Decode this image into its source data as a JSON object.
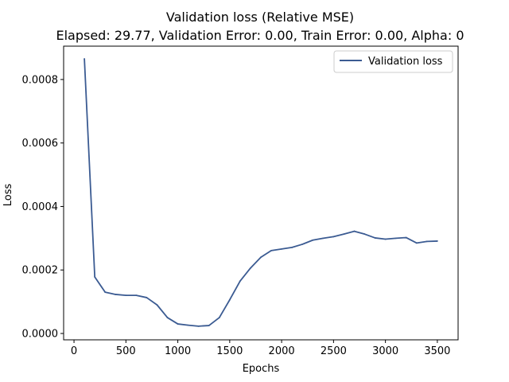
{
  "chart_data": {
    "type": "line",
    "title": "Validation loss (Relative MSE)",
    "subtitle": "Elapsed: 29.77, Validation Error: 0.00, Train Error: 0.00, Alpha: 0",
    "xlabel": "Epochs",
    "ylabel": "Loss",
    "xlim": [
      -100,
      3700
    ],
    "ylim": [
      -2e-05,
      0.000905
    ],
    "xticks": [
      0,
      500,
      1000,
      1500,
      2000,
      2500,
      3000,
      3500
    ],
    "xtick_labels": [
      "0",
      "500",
      "1000",
      "1500",
      "2000",
      "2500",
      "3000",
      "3500"
    ],
    "yticks": [
      0.0,
      0.0002,
      0.0004,
      0.0006,
      0.0008
    ],
    "ytick_labels": [
      "0.0000",
      "0.0002",
      "0.0004",
      "0.0006",
      "0.0008"
    ],
    "grid": false,
    "legend_placement": "top-right",
    "series": [
      {
        "name": "Validation loss",
        "color": "#3b5b92",
        "x": [
          100,
          200,
          300,
          400,
          500,
          600,
          700,
          800,
          900,
          1000,
          1100,
          1200,
          1300,
          1400,
          1500,
          1600,
          1700,
          1800,
          1900,
          2000,
          2100,
          2200,
          2300,
          2400,
          2500,
          2600,
          2700,
          2800,
          2900,
          3000,
          3100,
          3200,
          3300,
          3400,
          3500
        ],
        "y": [
          0.000865,
          0.000178,
          0.00013,
          0.000123,
          0.00012,
          0.00012,
          0.000113,
          9e-05,
          5e-05,
          3e-05,
          2.6e-05,
          2.3e-05,
          2.5e-05,
          5e-05,
          0.000106,
          0.000165,
          0.000206,
          0.00024,
          0.000261,
          0.000266,
          0.000271,
          0.000281,
          0.000294,
          0.0003,
          0.000305,
          0.000313,
          0.000322,
          0.000313,
          0.000301,
          0.000297,
          0.0003,
          0.000302,
          0.000285,
          0.00029,
          0.000291
        ]
      }
    ]
  }
}
